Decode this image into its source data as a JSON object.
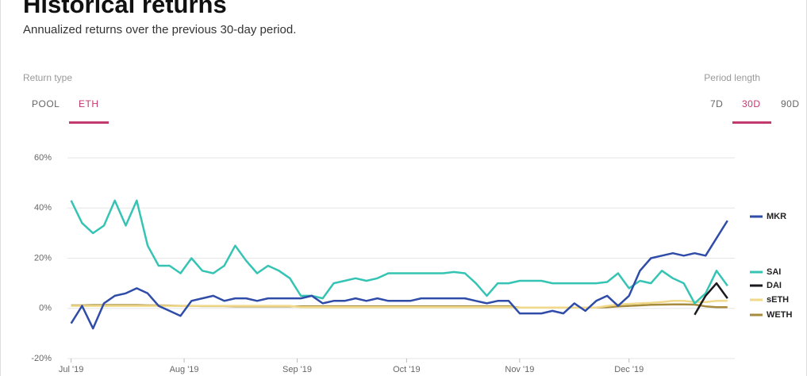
{
  "header": {
    "title": "Historical returns",
    "subtitle": "Annualized returns over the previous 30-day period."
  },
  "controls": {
    "return_type_label": "Return type",
    "return_types": [
      "POOL",
      "ETH"
    ],
    "period_label": "Period length",
    "periods": [
      "7D",
      "30D",
      "90D"
    ]
  },
  "chart_data": {
    "type": "line",
    "x": [
      0,
      3,
      6,
      9,
      12,
      15,
      18,
      21,
      24,
      27,
      30,
      33,
      36,
      39,
      42,
      45,
      48,
      51,
      54,
      57,
      60,
      63,
      66,
      69,
      72,
      75,
      78,
      81,
      84,
      87,
      90,
      93,
      96,
      99,
      102,
      105,
      108,
      111,
      114,
      117,
      120,
      123,
      126,
      129,
      132,
      135,
      138,
      141,
      144,
      147,
      150,
      153,
      156,
      159,
      162,
      165,
      168,
      171,
      174,
      177,
      180
    ],
    "xlim": [
      -1,
      182
    ],
    "xticks": [
      {
        "value": 0,
        "label": "Jul '19"
      },
      {
        "value": 31,
        "label": "Aug '19"
      },
      {
        "value": 62,
        "label": "Sep '19"
      },
      {
        "value": 92,
        "label": "Oct '19"
      },
      {
        "value": 123,
        "label": "Nov '19"
      },
      {
        "value": 153,
        "label": "Dec '19"
      }
    ],
    "ylim": [
      -20,
      60
    ],
    "yticks": [
      {
        "value": -20,
        "label": "-20%"
      },
      {
        "value": 0,
        "label": "0%"
      },
      {
        "value": 20,
        "label": "20%"
      },
      {
        "value": 40,
        "label": "40%"
      },
      {
        "value": 60,
        "label": "60%"
      }
    ],
    "grid": true,
    "series": [
      {
        "name": "MKR",
        "color": "#2e4ca8",
        "values": [
          -6,
          1,
          -8,
          2,
          5,
          6,
          8,
          6,
          1,
          -1,
          -3,
          3,
          4,
          5,
          3,
          4,
          4,
          3,
          4,
          4,
          4,
          4,
          5,
          2,
          3,
          3,
          4,
          3,
          4,
          3,
          3,
          3,
          4,
          4,
          4,
          4,
          4,
          3,
          2,
          3,
          3,
          -2,
          -2,
          -2,
          -1,
          -2,
          2,
          -1,
          3,
          5,
          1,
          5,
          15,
          20,
          21,
          22,
          21,
          22,
          21,
          28,
          35
        ]
      },
      {
        "name": "SAI",
        "color": "#35c4b4",
        "values": [
          43,
          34,
          30,
          33,
          43,
          33,
          43,
          25,
          17,
          17,
          14,
          20,
          15,
          14,
          17,
          25,
          19,
          14,
          17,
          15,
          12,
          5,
          5,
          4,
          10,
          11,
          12,
          11,
          12,
          14,
          14,
          14,
          14,
          14,
          14,
          14.5,
          14,
          10,
          5,
          10,
          10,
          11,
          11,
          11,
          10,
          10,
          10,
          10,
          10,
          10.5,
          14,
          8,
          11,
          10,
          15,
          12,
          10,
          2,
          6,
          15,
          9
        ]
      },
      {
        "name": "DAI",
        "color": "#1d1a1f",
        "values": [
          null,
          null,
          null,
          null,
          null,
          null,
          null,
          null,
          null,
          null,
          null,
          null,
          null,
          null,
          null,
          null,
          null,
          null,
          null,
          null,
          null,
          null,
          null,
          null,
          null,
          null,
          null,
          null,
          null,
          null,
          null,
          null,
          null,
          null,
          null,
          null,
          null,
          null,
          null,
          null,
          null,
          null,
          null,
          null,
          null,
          null,
          null,
          null,
          null,
          null,
          null,
          null,
          null,
          null,
          null,
          null,
          null,
          -2.5,
          5,
          10,
          4
        ]
      },
      {
        "name": "sETH",
        "color": "#f0d98a",
        "values": [
          1,
          1,
          1,
          1,
          1,
          1,
          1,
          1,
          1,
          1,
          1,
          1,
          1,
          1,
          1,
          1,
          1,
          1,
          1,
          1,
          1,
          0.5,
          0.5,
          0.5,
          0.5,
          0.5,
          0.5,
          0.5,
          0.5,
          0.5,
          0.5,
          0.5,
          0.5,
          0.5,
          0.5,
          0.5,
          0.5,
          0.5,
          0.5,
          0.5,
          0.5,
          0.3,
          0.3,
          0.3,
          0.3,
          0.3,
          0.3,
          0.3,
          0.3,
          1,
          1.5,
          1.8,
          2,
          2.2,
          2.5,
          3,
          3,
          2.5,
          2.5,
          3,
          3
        ]
      },
      {
        "name": "WETH",
        "color": "#a68b3c",
        "values": [
          1.2,
          1.2,
          1.3,
          1.3,
          1.3,
          1.3,
          1.3,
          1.2,
          1.2,
          1.1,
          1,
          1,
          0.9,
          0.9,
          0.9,
          0.8,
          0.8,
          0.8,
          0.8,
          0.8,
          0.8,
          0.8,
          0.8,
          0.8,
          0.8,
          0.8,
          0.8,
          0.8,
          0.8,
          0.8,
          0.8,
          0.8,
          0.8,
          0.8,
          0.8,
          0.8,
          0.8,
          0.8,
          0.8,
          0.8,
          0.8,
          0.3,
          0.3,
          0.3,
          0.3,
          0.3,
          0.3,
          0.3,
          0.3,
          0.5,
          0.8,
          1,
          1.2,
          1.4,
          1.5,
          1.6,
          1.6,
          1.5,
          0.8,
          0.5,
          0.5
        ]
      }
    ]
  }
}
